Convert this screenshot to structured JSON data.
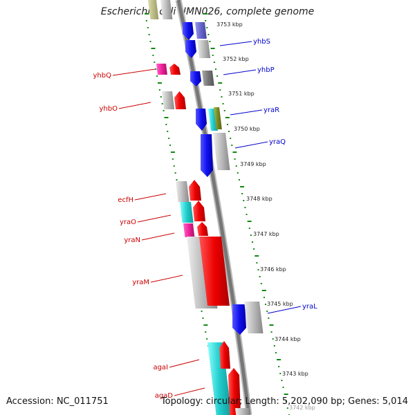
{
  "title": "Escherichia coli UMN026, complete genome",
  "footer": {
    "accession": "Accession: NC_011751",
    "topology": "Topology: circular; Length: 5,202,090 bp; Genes: 5,014"
  },
  "colors": {
    "forward_gene": "#ee1111",
    "reverse_gene": "#1111ee",
    "forward_label": "#cc0000",
    "reverse_label": "#0000cc",
    "ticks": "#118811",
    "backbone": "#888888",
    "pseudo_grey": "#bbbbbb",
    "cyan": "#22cccc",
    "magenta": "#ee2299"
  },
  "kbp_labels": [
    "3753 kbp",
    "3752 kbp",
    "3751 kbp",
    "3750 kbp",
    "3749 kbp",
    "3748 kbp",
    "3747 kbp",
    "3746 kbp",
    "3745 kbp",
    "3744 kbp",
    "3743 kbp",
    "3742 kbp"
  ],
  "forward_labels": [
    "yhbQ",
    "yhbO",
    "ecfH",
    "yraO",
    "yraN",
    "yraM",
    "agaI",
    "agaD"
  ],
  "reverse_labels": [
    "yhbS",
    "yhbP",
    "yraR",
    "yraQ",
    "yraL"
  ]
}
